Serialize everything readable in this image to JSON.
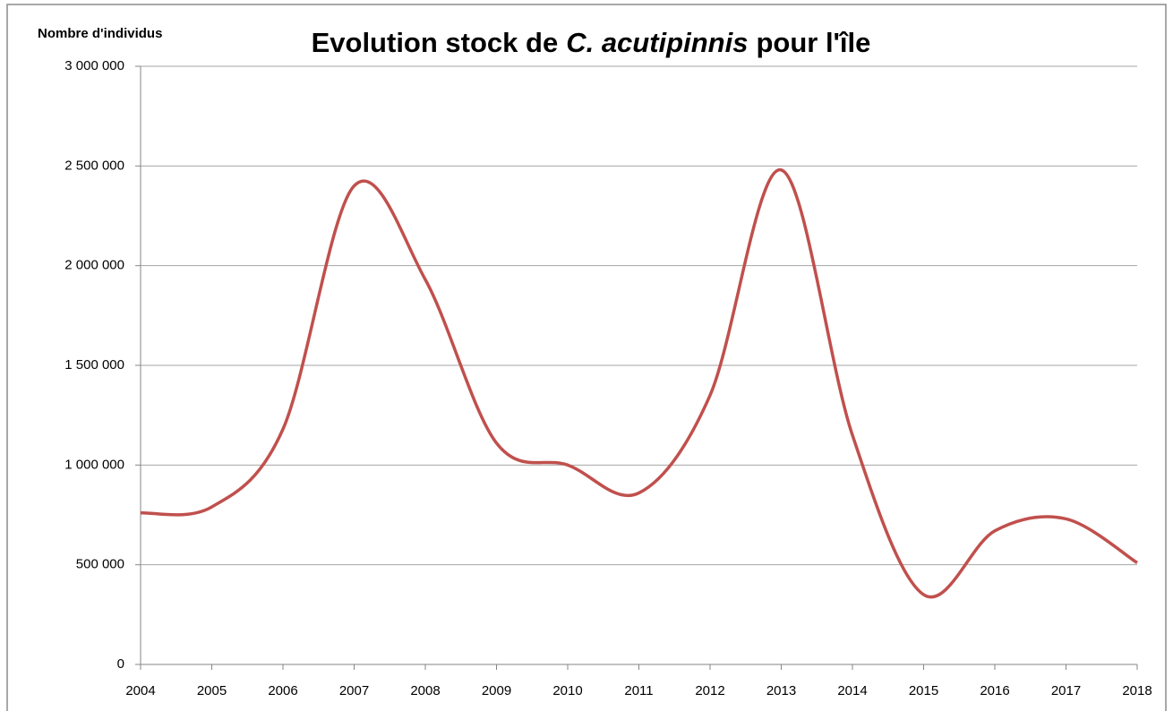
{
  "chart_data": {
    "type": "line",
    "title": [
      {
        "text": "Evolution stock de",
        "italic": false
      },
      {
        "text": "C. acutipinnis",
        "italic": true
      },
      {
        "text": "pour l'île",
        "italic": false
      }
    ],
    "y_label": "Nombre d'individus",
    "x": [
      2004,
      2005,
      2006,
      2007,
      2008,
      2009,
      2010,
      2011,
      2012,
      2013,
      2014,
      2015,
      2016,
      2017,
      2018
    ],
    "series": [
      {
        "name": "C. acutipinnis",
        "color": "#c0504d",
        "values": [
          760000,
          790000,
          1180000,
          2400000,
          1930000,
          1110000,
          1000000,
          860000,
          1350000,
          2480000,
          1150000,
          350000,
          670000,
          730000,
          510000
        ]
      }
    ],
    "xlim": [
      2004,
      2018
    ],
    "xticks": [
      2004,
      2005,
      2006,
      2007,
      2008,
      2009,
      2010,
      2011,
      2012,
      2013,
      2014,
      2015,
      2016,
      2017,
      2018
    ],
    "ylim": [
      0,
      3000000
    ],
    "yticks": [
      0,
      {
        "value": 500000,
        "label": "500 000"
      },
      {
        "value": 1000000,
        "label": "1 000 000"
      },
      {
        "value": 1500000,
        "label": "1 500 000"
      },
      {
        "value": 2000000,
        "label": "2 000 000"
      },
      {
        "value": 2500000,
        "label": "2 500 000"
      },
      {
        "value": 3000000,
        "label": "3 000 000"
      }
    ],
    "grid": true,
    "smooth": true
  }
}
